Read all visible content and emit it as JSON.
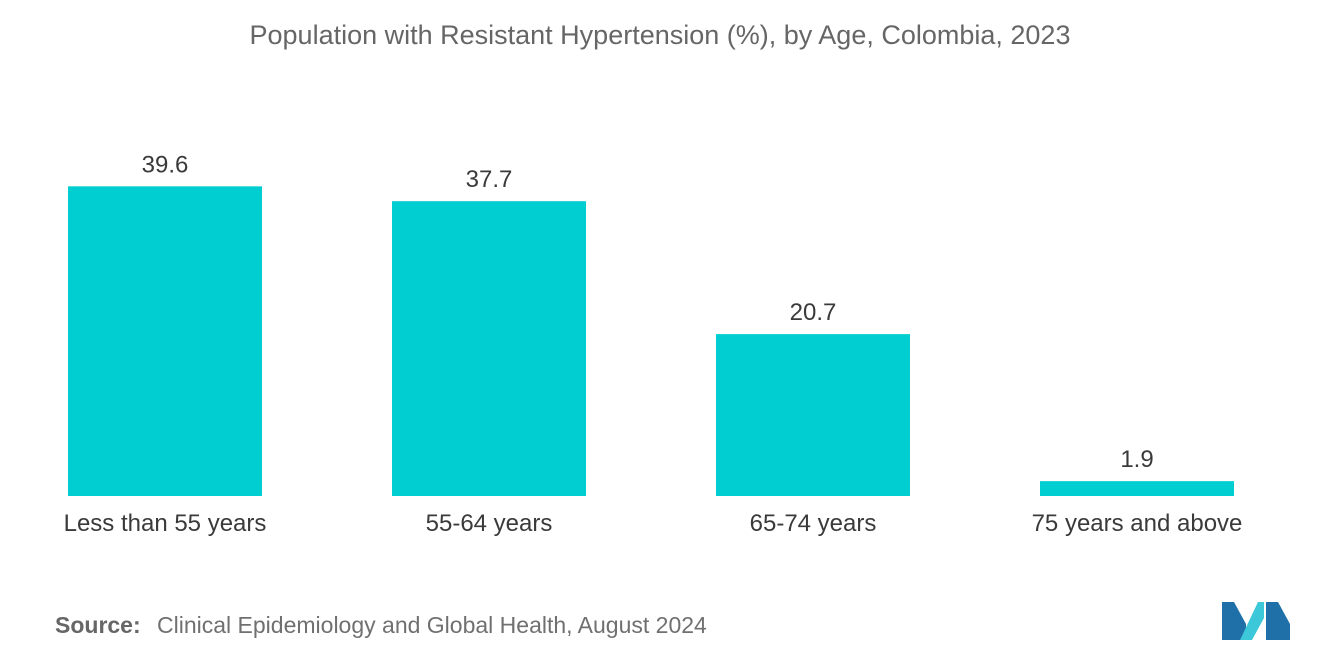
{
  "chart_data": {
    "type": "bar",
    "title": "Population with Resistant Hypertension (%), by Age, Colombia, 2023",
    "categories": [
      "Less than 55 years",
      "55-64 years",
      "65-74 years",
      "75 years and above"
    ],
    "values": [
      39.6,
      37.7,
      20.7,
      1.9
    ],
    "data_labels": [
      "39.6",
      "37.7",
      "20.7",
      "1.9"
    ],
    "xlabel": "",
    "ylabel": "",
    "ylim": [
      0,
      40
    ],
    "grid": false,
    "legend": "none",
    "bar_color": "#00CED1"
  },
  "source": {
    "label": "Source:",
    "text": "Clinical Epidemiology and Global Health, August 2024"
  },
  "logo": {
    "icon": "mordor-intelligence-logo-icon",
    "colors": [
      "#1F6FA8",
      "#3CC8D8"
    ]
  }
}
